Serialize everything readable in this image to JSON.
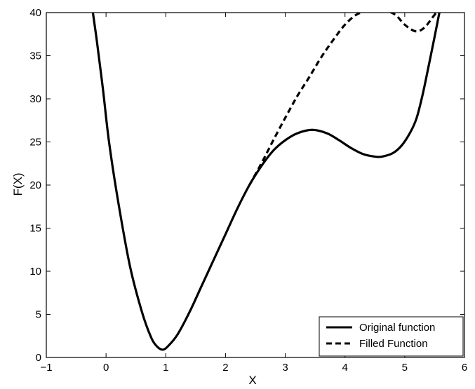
{
  "chart_data": {
    "type": "line",
    "title": "",
    "xlabel": "X",
    "ylabel": "F(X)",
    "xlim": [
      -1,
      6
    ],
    "ylim": [
      0,
      40
    ],
    "xticks": [
      "−1",
      "0",
      "1",
      "2",
      "3",
      "4",
      "5",
      "6"
    ],
    "yticks": [
      "0",
      "5",
      "10",
      "15",
      "20",
      "25",
      "30",
      "35",
      "40"
    ],
    "grid": false,
    "legend_position": "bottom-right",
    "series": [
      {
        "name": "Original function",
        "style": "solid",
        "color": "#000000",
        "points": [
          [
            -0.22,
            40
          ],
          [
            -0.15,
            36.5
          ],
          [
            -0.05,
            31
          ],
          [
            0.05,
            25
          ],
          [
            0.2,
            18.2
          ],
          [
            0.4,
            10.6
          ],
          [
            0.6,
            5.3
          ],
          [
            0.75,
            2.4
          ],
          [
            0.85,
            1.3
          ],
          [
            0.95,
            0.9
          ],
          [
            1.05,
            1.4
          ],
          [
            1.2,
            2.7
          ],
          [
            1.4,
            5.3
          ],
          [
            1.6,
            8.3
          ],
          [
            1.8,
            11.3
          ],
          [
            2.0,
            14.3
          ],
          [
            2.2,
            17.3
          ],
          [
            2.4,
            20.0
          ],
          [
            2.6,
            22.2
          ],
          [
            2.8,
            24.0
          ],
          [
            3.0,
            25.2
          ],
          [
            3.2,
            26.0
          ],
          [
            3.45,
            26.4
          ],
          [
            3.7,
            26.0
          ],
          [
            3.9,
            25.2
          ],
          [
            4.1,
            24.3
          ],
          [
            4.3,
            23.6
          ],
          [
            4.5,
            23.3
          ],
          [
            4.62,
            23.3
          ],
          [
            4.8,
            23.7
          ],
          [
            4.95,
            24.6
          ],
          [
            5.1,
            26.2
          ],
          [
            5.2,
            27.8
          ],
          [
            5.3,
            30.5
          ],
          [
            5.4,
            33.8
          ],
          [
            5.5,
            37.2
          ],
          [
            5.58,
            40
          ]
        ]
      },
      {
        "name": "Filled Function",
        "style": "dashed",
        "color": "#000000",
        "points": [
          [
            2.4,
            20.0
          ],
          [
            2.6,
            22.5
          ],
          [
            2.8,
            25.2
          ],
          [
            3.0,
            27.8
          ],
          [
            3.2,
            30.3
          ],
          [
            3.4,
            32.5
          ],
          [
            3.6,
            34.8
          ],
          [
            3.8,
            36.8
          ],
          [
            4.0,
            38.6
          ],
          [
            4.2,
            39.8
          ],
          [
            4.4,
            40.2
          ],
          [
            4.55,
            40.3
          ],
          [
            4.7,
            40.2
          ],
          [
            4.85,
            39.7
          ],
          [
            5.0,
            38.6
          ],
          [
            5.15,
            37.9
          ],
          [
            5.25,
            37.9
          ],
          [
            5.35,
            38.4
          ],
          [
            5.45,
            39.3
          ],
          [
            5.55,
            40.2
          ]
        ]
      }
    ]
  }
}
